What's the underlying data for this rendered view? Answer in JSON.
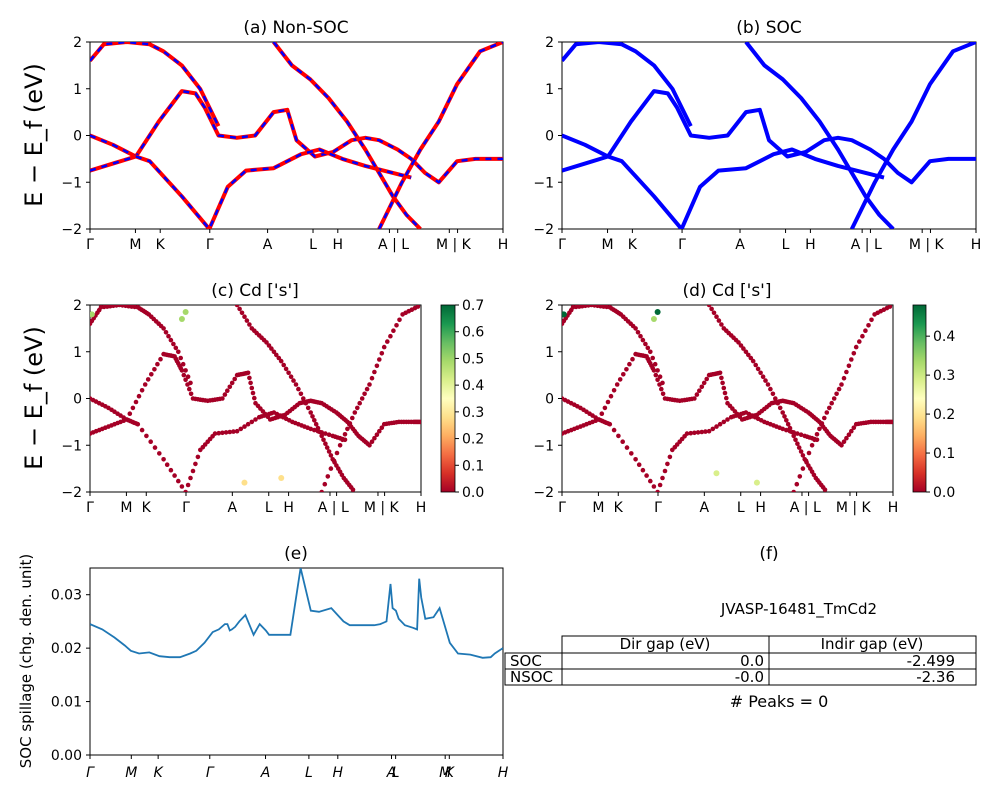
{
  "chart_data": [
    {
      "panel": "a",
      "type": "line",
      "title": "(a) Non-SOC",
      "ylabel": "E − E_f (eV)",
      "ylim": [
        -2,
        2
      ],
      "yticks": [
        "−2",
        "−1",
        "0",
        "1",
        "2"
      ],
      "kpath_labels": [
        "Γ",
        "M",
        "K",
        "Γ",
        "A",
        "L",
        "H",
        "A | L",
        "M | K",
        "H"
      ],
      "series": [
        {
          "color": "#ff0000",
          "style": "solid",
          "x": [
            0,
            0.5,
            1,
            1.5,
            2,
            2.3,
            2.5,
            2.8,
            3.2,
            3.6,
            4.0,
            4.3,
            4.5,
            4.9,
            5.3,
            5.7,
            6.0,
            6.3,
            6.7,
            7.0,
            7.3,
            7.6,
            8.0,
            8.4,
            8.8,
            9.0
          ],
          "y": [
            0.0,
            -0.2,
            -0.45,
            0.3,
            0.95,
            0.9,
            0.6,
            0.0,
            -0.05,
            0.0,
            0.5,
            0.55,
            -0.1,
            -0.45,
            -0.35,
            -0.1,
            -0.05,
            -0.1,
            -0.3,
            -0.5,
            -0.8,
            -1.0,
            -0.55,
            -0.5,
            -0.5,
            -0.5
          ]
        },
        {
          "color": "#0000ff",
          "style": "dashed",
          "x": [
            0,
            0.5,
            1,
            1.5,
            2,
            2.3,
            2.5,
            2.8,
            3.2,
            3.6,
            4.0,
            4.3,
            4.5,
            4.9,
            5.3,
            5.7,
            6.0,
            6.3,
            6.7,
            7.0,
            7.3,
            7.6,
            8.0,
            8.4,
            8.8,
            9.0
          ],
          "y": [
            0.0,
            -0.2,
            -0.45,
            0.3,
            0.95,
            0.9,
            0.6,
            0.0,
            -0.05,
            0.0,
            0.5,
            0.55,
            -0.1,
            -0.45,
            -0.35,
            -0.1,
            -0.05,
            -0.1,
            -0.3,
            -0.5,
            -0.8,
            -1.0,
            -0.55,
            -0.5,
            -0.5,
            -0.5
          ]
        },
        {
          "color": "#ff0000",
          "style": "solid",
          "x": [
            0,
            0.5,
            1,
            1.3,
            2,
            2.6,
            3.0,
            3.4,
            4.0,
            4.6,
            5.0,
            5.5,
            6.0,
            6.6,
            7.0
          ],
          "y": [
            -0.75,
            -0.6,
            -0.45,
            -0.55,
            -1.3,
            -2.0,
            -1.1,
            -0.75,
            -0.7,
            -0.4,
            -0.3,
            -0.5,
            -0.65,
            -0.8,
            -0.9
          ]
        },
        {
          "color": "#0000ff",
          "style": "dashed",
          "x": [
            0,
            0.5,
            1,
            1.3,
            2,
            2.6,
            3.0,
            3.4,
            4.0,
            4.6,
            5.0,
            5.5,
            6.0,
            6.6,
            7.0
          ],
          "y": [
            -0.75,
            -0.6,
            -0.45,
            -0.55,
            -1.3,
            -2.0,
            -1.1,
            -0.75,
            -0.7,
            -0.4,
            -0.3,
            -0.5,
            -0.65,
            -0.8,
            -0.9
          ]
        },
        {
          "color": "#ff0000",
          "style": "solid",
          "x": [
            0,
            0.3,
            0.8,
            1.3,
            1.6,
            2.0,
            2.4,
            2.8
          ],
          "y": [
            1.6,
            1.95,
            2.0,
            1.95,
            1.8,
            1.5,
            1.0,
            0.2
          ]
        },
        {
          "color": "#0000ff",
          "style": "dashed",
          "x": [
            0,
            0.3,
            0.8,
            1.3,
            1.6,
            2.0,
            2.4,
            2.8
          ],
          "y": [
            1.6,
            1.95,
            2.0,
            1.95,
            1.8,
            1.5,
            1.0,
            0.2
          ]
        },
        {
          "color": "#ff0000",
          "style": "solid",
          "x": [
            4.0,
            4.4,
            4.8,
            5.2,
            5.6,
            6.0,
            6.3,
            6.6,
            6.9,
            7.2
          ],
          "y": [
            2.0,
            1.5,
            1.2,
            0.8,
            0.3,
            -0.3,
            -0.8,
            -1.3,
            -1.7,
            -2.0
          ]
        },
        {
          "color": "#0000ff",
          "style": "dashed",
          "x": [
            4.0,
            4.4,
            4.8,
            5.2,
            5.6,
            6.0,
            6.3,
            6.6,
            6.9,
            7.2
          ],
          "y": [
            2.0,
            1.5,
            1.2,
            0.8,
            0.3,
            -0.3,
            -0.8,
            -1.3,
            -1.7,
            -2.0
          ]
        },
        {
          "color": "#ff0000",
          "style": "solid",
          "x": [
            6.3,
            6.8,
            7.2,
            7.6,
            8.0,
            8.5,
            9.0
          ],
          "y": [
            -2.0,
            -1.0,
            -0.3,
            0.3,
            1.1,
            1.8,
            2.0
          ]
        },
        {
          "color": "#0000ff",
          "style": "dashed",
          "x": [
            6.3,
            6.8,
            7.2,
            7.6,
            8.0,
            8.5,
            9.0
          ],
          "y": [
            -2.0,
            -1.0,
            -0.3,
            0.3,
            1.1,
            1.8,
            2.0
          ]
        }
      ]
    },
    {
      "panel": "b",
      "type": "line",
      "title": "(b) SOC",
      "ylim": [
        -2,
        2
      ],
      "yticks": [
        "−2",
        "−1",
        "0",
        "1",
        "2"
      ],
      "kpath_labels": [
        "Γ",
        "M",
        "K",
        "Γ",
        "A",
        "L",
        "H",
        "A | L",
        "M | K",
        "H"
      ],
      "series": [
        {
          "color": "#0000ff",
          "style": "solid",
          "x": [
            0,
            0.5,
            1,
            1.5,
            2,
            2.3,
            2.5,
            2.8,
            3.2,
            3.6,
            4.0,
            4.3,
            4.5,
            4.9,
            5.3,
            5.7,
            6.0,
            6.3,
            6.7,
            7.0,
            7.3,
            7.6,
            8.0,
            8.4,
            8.8,
            9.0
          ],
          "y": [
            0.0,
            -0.2,
            -0.45,
            0.3,
            0.95,
            0.9,
            0.6,
            0.0,
            -0.05,
            0.0,
            0.5,
            0.55,
            -0.1,
            -0.45,
            -0.35,
            -0.1,
            -0.05,
            -0.1,
            -0.3,
            -0.5,
            -0.8,
            -1.0,
            -0.55,
            -0.5,
            -0.5,
            -0.5
          ]
        },
        {
          "color": "#0000ff",
          "style": "solid",
          "x": [
            0,
            0.5,
            1,
            1.3,
            2,
            2.6,
            3.0,
            3.4,
            4.0,
            4.6,
            5.0,
            5.5,
            6.0,
            6.6,
            7.0
          ],
          "y": [
            -0.75,
            -0.6,
            -0.45,
            -0.55,
            -1.3,
            -2.0,
            -1.1,
            -0.75,
            -0.7,
            -0.4,
            -0.3,
            -0.5,
            -0.65,
            -0.8,
            -0.9
          ]
        },
        {
          "color": "#0000ff",
          "style": "solid",
          "x": [
            0,
            0.3,
            0.8,
            1.3,
            1.6,
            2.0,
            2.4,
            2.8
          ],
          "y": [
            1.6,
            1.95,
            2.0,
            1.95,
            1.8,
            1.5,
            1.0,
            0.2
          ]
        },
        {
          "color": "#0000ff",
          "style": "solid",
          "x": [
            4.0,
            4.4,
            4.8,
            5.2,
            5.6,
            6.0,
            6.3,
            6.6,
            6.9,
            7.2
          ],
          "y": [
            2.0,
            1.5,
            1.2,
            0.8,
            0.3,
            -0.3,
            -0.8,
            -1.3,
            -1.7,
            -2.0
          ]
        },
        {
          "color": "#0000ff",
          "style": "solid",
          "x": [
            6.3,
            6.8,
            7.2,
            7.6,
            8.0,
            8.5,
            9.0
          ],
          "y": [
            -2.0,
            -1.0,
            -0.3,
            0.3,
            1.1,
            1.8,
            2.0
          ]
        }
      ]
    },
    {
      "panel": "c",
      "type": "scatter",
      "title": "(c)  Cd ['s']",
      "ylabel": "E − E_f (eV)",
      "ylim": [
        -2,
        2
      ],
      "yticks": [
        "−2",
        "−1",
        "0",
        "1",
        "2"
      ],
      "kpath_labels": [
        "Γ",
        "M",
        "K",
        "Γ",
        "A",
        "L",
        "H",
        "A | L",
        "M | K",
        "H"
      ],
      "colorbar": {
        "min": 0.0,
        "max": 0.7,
        "ticks": [
          "0.0",
          "0.1",
          "0.2",
          "0.3",
          "0.4",
          "0.5",
          "0.6",
          "0.7"
        ]
      },
      "highlights": [
        {
          "x": 0.05,
          "y": 1.8,
          "value": 0.45
        },
        {
          "x": 2.5,
          "y": 1.7,
          "value": 0.45
        },
        {
          "x": 2.6,
          "y": 1.85,
          "value": 0.45
        },
        {
          "x": 4.2,
          "y": -1.8,
          "value": 0.25
        },
        {
          "x": 5.2,
          "y": -1.7,
          "value": 0.25
        }
      ]
    },
    {
      "panel": "d",
      "type": "scatter",
      "title": "(d) Cd ['s']",
      "ylim": [
        -2,
        2
      ],
      "yticks": [
        "−2",
        "−1",
        "0",
        "1",
        "2"
      ],
      "kpath_labels": [
        "Γ",
        "M",
        "K",
        "Γ",
        "A",
        "L",
        "H",
        "A | L",
        "M | K",
        "H"
      ],
      "colorbar": {
        "min": 0.0,
        "max": 0.48,
        "ticks": [
          "0.0",
          "0.1",
          "0.2",
          "0.3",
          "0.4"
        ]
      },
      "highlights": [
        {
          "x": 0.05,
          "y": 1.8,
          "value": 0.45
        },
        {
          "x": 2.5,
          "y": 1.7,
          "value": 0.4
        },
        {
          "x": 2.6,
          "y": 1.85,
          "value": 0.45
        },
        {
          "x": 4.2,
          "y": -1.6,
          "value": 0.22
        },
        {
          "x": 5.3,
          "y": -1.8,
          "value": 0.22
        }
      ]
    },
    {
      "panel": "e",
      "type": "line",
      "title": "(e)",
      "ylabel": "SOC spillage (chg. den. unit)",
      "ylim": [
        0,
        0.035
      ],
      "yticks": [
        "0.00",
        "0.01",
        "0.02",
        "0.03"
      ],
      "kpath_labels": [
        "Γ",
        "M",
        "K",
        "Γ",
        "A",
        "L",
        "H",
        "A",
        "L",
        "M",
        "K",
        "H"
      ],
      "series": [
        {
          "color": "#1f77b4",
          "x": [
            0,
            0.3,
            0.6,
            0.85,
            1.0,
            1.2,
            1.45,
            1.7,
            1.95,
            2.2,
            2.45,
            2.6,
            2.8,
            3.0,
            3.15,
            3.3,
            3.36,
            3.42,
            3.47,
            3.55,
            3.65,
            3.8,
            4.0,
            4.15,
            4.3,
            4.38,
            4.45,
            4.6,
            4.75,
            4.9,
            5.15,
            5.4,
            5.6,
            5.9,
            6.2,
            6.35,
            6.5,
            6.57,
            6.62,
            6.68,
            6.75,
            6.8,
            6.95,
            7.1,
            7.25,
            7.35,
            7.4,
            7.48,
            7.55,
            7.7,
            7.9,
            8.0,
            8.05,
            8.1,
            8.2,
            8.4,
            8.55,
            8.8,
            9.0,
            9.3,
            9.6,
            9.8,
            9.9,
            10.0,
            10.1
          ],
          "y": [
            0.0245,
            0.0235,
            0.022,
            0.0205,
            0.0195,
            0.019,
            0.0192,
            0.0185,
            0.0183,
            0.0183,
            0.019,
            0.0195,
            0.021,
            0.023,
            0.0235,
            0.0245,
            0.0245,
            0.0233,
            0.0235,
            0.024,
            0.025,
            0.0262,
            0.0225,
            0.0245,
            0.0233,
            0.0225,
            0.0225,
            0.0225,
            0.0225,
            0.0225,
            0.035,
            0.027,
            0.0268,
            0.0275,
            0.025,
            0.0243,
            0.0243,
            0.0243,
            0.0243,
            0.0243,
            0.0243,
            0.0243,
            0.0243,
            0.0245,
            0.025,
            0.032,
            0.0275,
            0.027,
            0.0255,
            0.0243,
            0.0238,
            0.0235,
            0.033,
            0.0295,
            0.0255,
            0.0258,
            0.0275,
            0.021,
            0.019,
            0.0188,
            0.0182,
            0.0183,
            0.019,
            0.0195,
            0.02
          ]
        }
      ]
    }
  ],
  "table_panel": {
    "title": "(f)",
    "material": "JVASP-16481_TmCd2",
    "headers": [
      "",
      "Dir gap (eV)",
      "Indir gap (eV)"
    ],
    "rows": [
      {
        "label": "SOC",
        "dir": "0.0",
        "indir": "-2.499"
      },
      {
        "label": "NSOC",
        "dir": "-0.0",
        "indir": "-2.36"
      }
    ],
    "peaks": "# Peaks = 0"
  }
}
